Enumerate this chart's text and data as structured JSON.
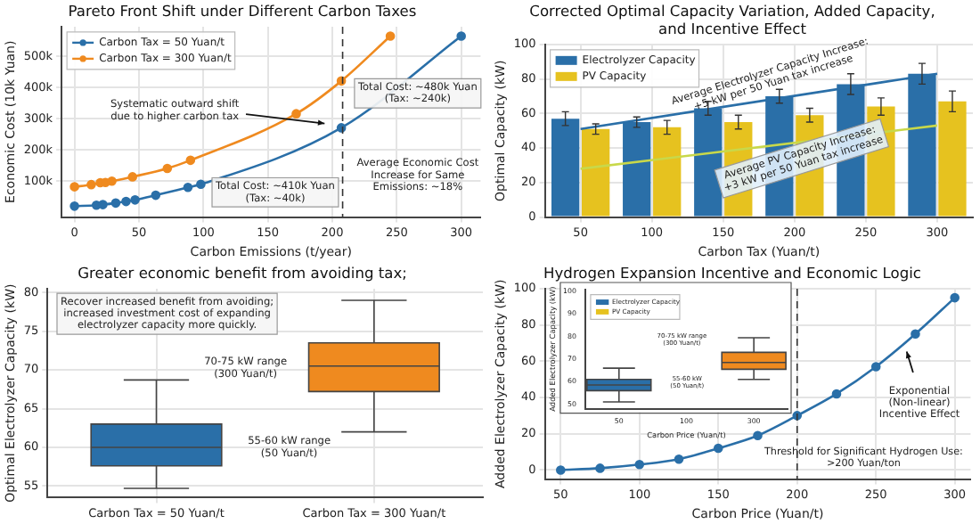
{
  "chart_data": [
    {
      "type": "line",
      "title": "Pareto Front Shift under Different Carbon Taxes",
      "xlabel": "Carbon Emissions (t/year)",
      "ylabel": "Economic Cost (10k Yuan)",
      "xlim": [
        -10,
        315
      ],
      "ylim": [
        -15000,
        595000
      ],
      "xticks": [
        0,
        50,
        100,
        150,
        200,
        250,
        300
      ],
      "yticks": [
        {
          "value": 100000,
          "label": "100k"
        },
        {
          "value": 200000,
          "label": "200k"
        },
        {
          "value": 300000,
          "label": "300k"
        },
        {
          "value": 400000,
          "label": "400k"
        },
        {
          "value": 500000,
          "label": "500k"
        }
      ],
      "series": [
        {
          "name": "Carbon Tax = 50 Yuan/t",
          "color": "#2a6fa8",
          "x": [
            0,
            17,
            22,
            32,
            40,
            47,
            63,
            88,
            98,
            207,
            300
          ],
          "values": [
            20000,
            23000,
            25000,
            30000,
            35000,
            40000,
            55000,
            80000,
            90000,
            271000,
            565000
          ]
        },
        {
          "name": "Carbon Tax = 300 Yuan/t",
          "color": "#ef8a1f",
          "x": [
            0,
            13,
            20,
            24,
            29,
            45,
            72,
            90,
            172,
            207,
            245
          ],
          "values": [
            82000,
            89000,
            95000,
            96000,
            100000,
            114000,
            141000,
            167000,
            316000,
            421000,
            565000
          ]
        }
      ],
      "ref_lines": [
        {
          "axis": "x",
          "value": 208,
          "line_style": "dashed",
          "color": "#333333"
        }
      ],
      "annotations": [
        {
          "text": "Systematic outward shift\ndue to higher carbon tax",
          "x": 194,
          "y": 262000
        },
        "Total Cost: ~480k Yuan\n(Tax: ~240k)",
        "Total Cost: ~410k Yuan\n(Tax: ~40k)",
        "Average Economic Cost\nIncrease for Same\nEmissions: ~18%"
      ],
      "legend": "top left",
      "grid": true,
      "marker": "circle"
    },
    {
      "type": "bar",
      "title": "Corrected Optimal Capacity Variation, Added Capacity, and Incentive Effect",
      "xlabel": "Carbon Tax (Yuan/t)",
      "ylabel": "Optimal Capacity (kW)",
      "categories": [
        "50",
        "100",
        "150",
        "200",
        "250",
        "300"
      ],
      "ylim": [
        0,
        100
      ],
      "yticks": [
        0,
        20,
        40,
        60,
        80,
        100
      ],
      "series": [
        {
          "name": "Electrolyzer Capacity",
          "color": "#2a6fa8",
          "values": [
            57,
            55,
            63,
            70,
            77,
            83
          ],
          "errors": [
            4,
            3,
            4,
            4,
            6,
            6
          ]
        },
        {
          "name": "PV Capacity",
          "color": "#e6c21f",
          "values": [
            51,
            52,
            55,
            59,
            64,
            67
          ],
          "errors": [
            3,
            4,
            4,
            4,
            5,
            6
          ]
        },
        {
          "type": "line",
          "color": "#2a6fa8",
          "x": [
            "50",
            "300"
          ],
          "values": [
            51,
            83
          ]
        },
        {
          "type": "line",
          "color": "#c8d84a",
          "x": [
            "50",
            "300"
          ],
          "values": [
            28,
            53
          ]
        }
      ],
      "annotations": [
        "Average Electrolyzer Capacity Increase:\n+5 kW per 50 Yuan tax increase",
        "Average PV Capacity Increase:\n+3 kW per 50 Yuan tax increase"
      ],
      "legend": "top left",
      "grid": true
    },
    {
      "type": "box",
      "title": "Greater economic benefit from avoiding tax;",
      "ylabel": "Optimal Electrolyzer Capacity (kW)",
      "categories": [
        "Carbon Tax = 50 Yuan/t",
        "Carbon Tax = 300 Yuan/t"
      ],
      "ylim": [
        53.5,
        80.5
      ],
      "yticks": [
        55,
        60,
        65,
        70,
        75,
        80
      ],
      "boxes": [
        {
          "low": 54.7,
          "q1": 57.6,
          "median": 60,
          "q3": 63,
          "high": 68.7
        },
        {
          "low": 62,
          "q1": 67.2,
          "median": 70.5,
          "q3": 73.5,
          "high": 79
        }
      ],
      "colors": [
        "#2a6fa8",
        "#ef8a1f"
      ],
      "annotations": [
        "Recover increased benefit from avoiding;\nincreased investment cost of expanding\nelectrolyzer capacity more quickly.",
        "70-75 kW range\n(300 Yuan/t)",
        "55-60 kW range\n(50 Yuan/t)"
      ],
      "grid": true
    },
    {
      "type": "line",
      "title": "Hydrogen Expansion Incentive and Economic Logic",
      "xlabel": "Carbon Price (Yuan/t)",
      "ylabel": "Added Electrolyzer Capacity (kW)",
      "xlim": [
        40,
        310
      ],
      "ylim": [
        -5,
        100
      ],
      "xticks": [
        50,
        100,
        150,
        200,
        250,
        300
      ],
      "yticks": [
        0,
        20,
        40,
        60,
        80,
        100
      ],
      "series": [
        {
          "color": "#2a6fa8",
          "x": [
            50,
            75,
            100,
            125,
            150,
            175,
            200,
            225,
            250,
            275,
            300
          ],
          "values": [
            0,
            1,
            3,
            6,
            12,
            19,
            30,
            42,
            57,
            75,
            95
          ]
        }
      ],
      "ref_lines": [
        {
          "axis": "x",
          "value": 200,
          "label": "Threshold for Significant Hydrogen Use:\n>200 Yuan/ton",
          "line_style": "dashed",
          "color": "#333333"
        }
      ],
      "annotations": [
        "Exponential\n(Non-linear)\nIncentive Effect"
      ],
      "grid": true,
      "marker": "circle"
    },
    {
      "type": "box",
      "xlabel": "Carbon Price (Yuan/t)",
      "ylabel": "Added Electrolyzer Capacity (kW)",
      "categories": [
        "50",
        "100",
        "300"
      ],
      "ylim": [
        48,
        101
      ],
      "yticks": [
        50,
        60,
        70,
        80,
        90,
        100
      ],
      "series": [
        {
          "name": "Electrolyzer Capacity",
          "color": "#2a6fa8",
          "boxes": [
            {
              "low": 51,
              "q1": 56,
              "median": 58.5,
              "q3": 61,
              "high": 66
            },
            null,
            null
          ]
        },
        {
          "name": "PV Capacity",
          "color": "#e6c21f",
          "boxes": [
            null,
            null,
            null
          ]
        },
        {
          "color": "#ef8a1f",
          "boxes": [
            null,
            null,
            {
              "low": 61,
              "q1": 65.5,
              "median": 68.5,
              "q3": 73,
              "high": 79.5
            }
          ]
        }
      ],
      "annotations": [
        "70-75 kW range\n(300 Yuan/t)",
        "55-60 kW\n(50 Yuan/t)"
      ],
      "legend": "top left"
    }
  ]
}
